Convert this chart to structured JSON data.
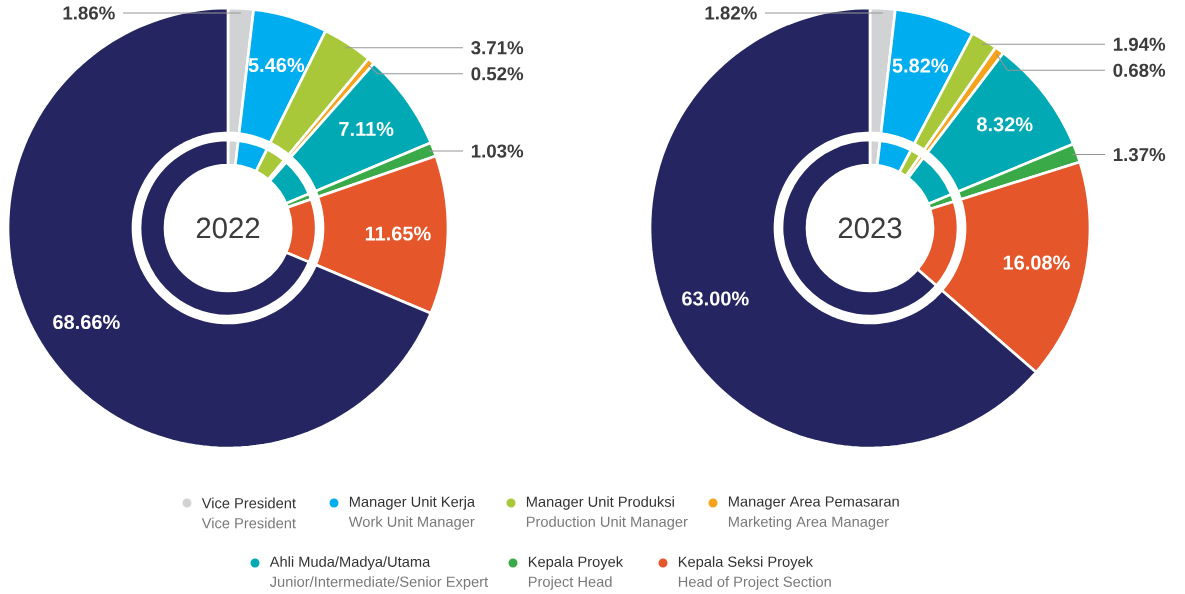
{
  "chart_data": [
    {
      "type": "donut",
      "title": "2022",
      "legend": "bottom",
      "categories": [
        "Vice President",
        "Manager Unit Kerja",
        "Manager Unit Produksi",
        "Manager Area Pemasaran",
        "Ahli Muda/Madya/Utama",
        "Kepala Proyek",
        "Kepala Seksi Proyek",
        null
      ],
      "values": [
        1.86,
        5.46,
        3.71,
        0.52,
        7.11,
        1.03,
        11.65,
        68.66
      ],
      "value_labels": [
        "1.86%",
        "5.46%",
        "3.71%",
        "0.52%",
        "7.11%",
        "1.03%",
        "11.65%",
        "68.66%"
      ],
      "colors": [
        "#d1d2d4",
        "#00adef",
        "#a8c83a",
        "#f7a21b",
        "#00a9b4",
        "#3aaa49",
        "#e5562a",
        "#252562"
      ],
      "annotations": [
        "Vice President",
        "Work Unit Manager",
        "Production Unit Manager",
        "Marketing Area Manager",
        "Junior/Intermediate/Senior Expert",
        "Project Head",
        "Head of Project Section"
      ]
    },
    {
      "type": "donut",
      "title": "2023",
      "categories": [
        null,
        null,
        null,
        null,
        null,
        null,
        null,
        null
      ],
      "values": [
        1.82,
        5.82,
        1.94,
        0.68,
        8.32,
        1.37,
        16.08,
        63.0
      ],
      "value_labels": [
        "1.82%",
        "5.82%",
        "1.94%",
        "0.68%",
        "8.32%",
        "1.37%",
        "16.08%",
        "63.00%"
      ],
      "colors": [
        "#d1d2d4",
        "#00adef",
        "#a8c83a",
        "#f7a21b",
        "#00a9b4",
        "#3aaa49",
        "#e5562a",
        "#252562"
      ]
    }
  ]
}
